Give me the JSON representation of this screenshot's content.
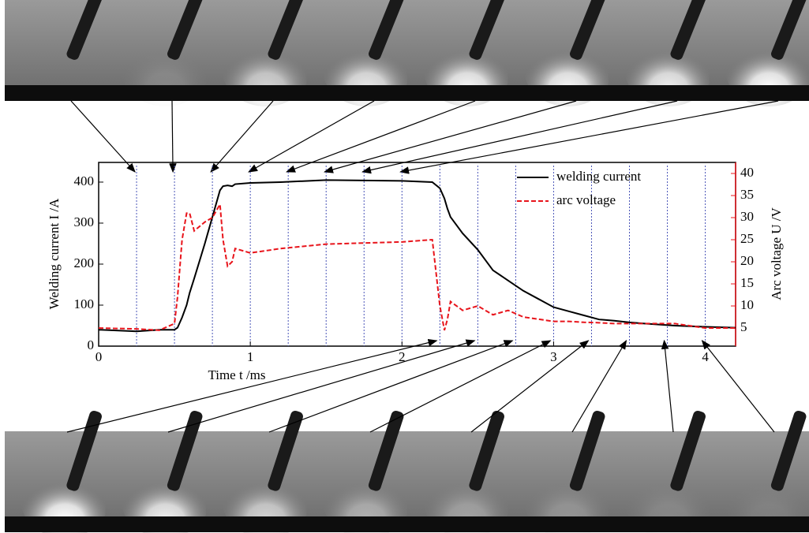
{
  "chart_data": {
    "type": "line",
    "xlabel": "Time t /ms",
    "ylabel": "Welding current I /A",
    "y2label": "Arc voltage U /V",
    "x": [
      0,
      0.25,
      0.4,
      0.5,
      0.52,
      0.55,
      0.58,
      0.6,
      0.63,
      0.7,
      0.75,
      0.8,
      0.82,
      0.85,
      0.88,
      0.9,
      1.0,
      1.2,
      1.5,
      2.0,
      2.2,
      2.25,
      2.28,
      2.3,
      2.32,
      2.4,
      2.5,
      2.6,
      2.7,
      2.8,
      2.9,
      3.0,
      3.1,
      3.2,
      3.3,
      3.4,
      3.5,
      3.6,
      3.8,
      4.0,
      4.2
    ],
    "series": [
      {
        "name": "welding current",
        "color": "#000000",
        "dash": false,
        "values": [
          40,
          36,
          40,
          40,
          45,
          70,
          100,
          130,
          165,
          250,
          315,
          380,
          390,
          392,
          390,
          395,
          398,
          400,
          405,
          403,
          400,
          385,
          360,
          335,
          315,
          275,
          235,
          185,
          160,
          135,
          115,
          95,
          85,
          75,
          65,
          62,
          58,
          55,
          50,
          47,
          45
        ]
      },
      {
        "name": "arc voltage",
        "color": "#e8141b",
        "dash": true,
        "axis": "y2",
        "values": [
          5,
          4.8,
          4.5,
          6,
          12,
          25,
          31,
          31,
          27,
          29,
          30,
          33,
          25,
          19,
          20,
          23,
          22,
          23,
          24,
          24.5,
          25,
          10,
          4.5,
          7,
          11,
          9,
          10,
          8,
          9,
          7.5,
          7,
          6.5,
          6.5,
          6.3,
          6.2,
          6,
          6,
          6,
          6,
          5,
          5
        ]
      }
    ],
    "frame_times": [
      0.25,
      0.5,
      0.75,
      1,
      1.25,
      1.5,
      1.75,
      2,
      2.25,
      2.5,
      2.75,
      3,
      3.25,
      3.5,
      3.75,
      4
    ],
    "xlim": [
      0,
      4.2
    ],
    "ylim": [
      0,
      448
    ],
    "y2lim": [
      0.9,
      42.5
    ],
    "xticks": [
      0,
      1,
      2,
      3,
      4
    ],
    "yticks": [
      0,
      100,
      200,
      300,
      400
    ],
    "y2ticks": [
      5,
      10,
      15,
      20,
      25,
      30,
      35,
      40
    ],
    "legend": "upper-right"
  }
}
